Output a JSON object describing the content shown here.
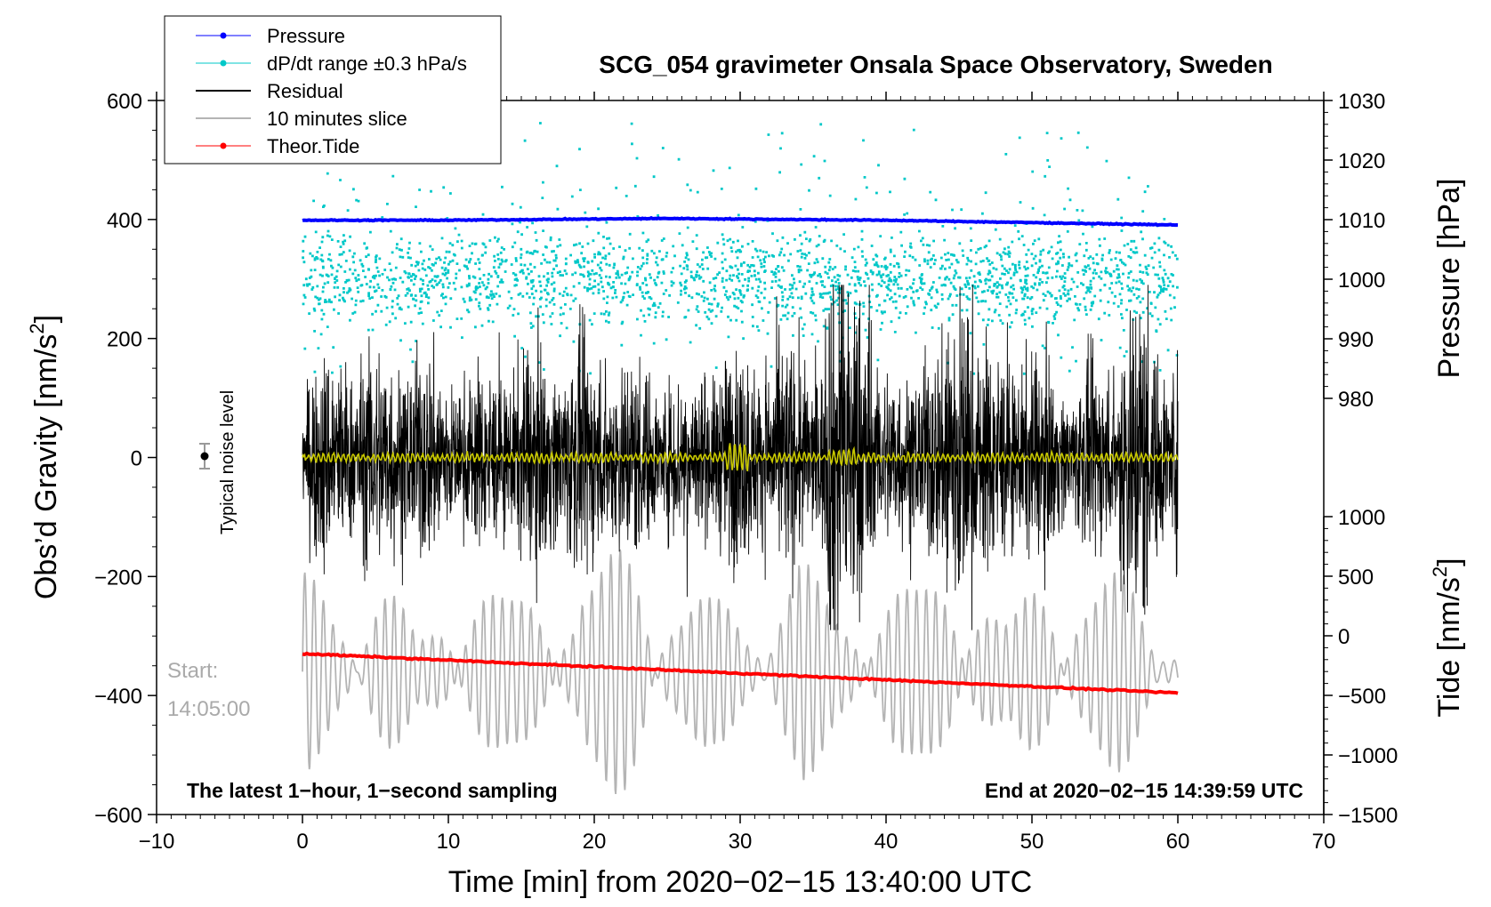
{
  "chart_data": {
    "type": "line",
    "title": "SCG_054 gravimeter Onsala Space Observatory, Sweden",
    "xlabel": "Time [min] from 2020−02−15 13:40:00 UTC",
    "ylabel_left_text": "Obs’d Gravity [nm/s",
    "ylabel_left_sup": "2",
    "ylabel_left_close": "]",
    "ylabel_right_top": "Pressure [hPa]",
    "ylabel_right_bottom_text": "Tide [nm/s",
    "ylabel_right_bottom_sup": "2",
    "ylabel_right_bottom_close": "]",
    "xlim": [
      -10,
      70
    ],
    "ylim_left": [
      -600,
      600
    ],
    "pressure_axis_range": [
      980,
      1030
    ],
    "tide_axis_range": [
      -1500,
      1000
    ],
    "x_ticks": [
      "−10",
      "0",
      "10",
      "20",
      "30",
      "40",
      "50",
      "60",
      "70"
    ],
    "y_left_ticks": [
      "−600",
      "−400",
      "−200",
      "0",
      "200",
      "400",
      "600"
    ],
    "y_left_values": [
      -600,
      -400,
      -200,
      0,
      200,
      400,
      600
    ],
    "pressure_ticks": [
      "980",
      "990",
      "1000",
      "1010",
      "1020",
      "1030"
    ],
    "pressure_values": [
      980,
      990,
      1000,
      1010,
      1020,
      1030
    ],
    "tide_ticks": [
      "−1500",
      "−1000",
      "−500",
      "0",
      "500",
      "1000"
    ],
    "tide_values": [
      -1500,
      -1000,
      -500,
      0,
      500,
      1000
    ],
    "legend": [
      {
        "label": "Pressure",
        "color": "#0000ff",
        "marker": true
      },
      {
        "label": "dP/dt range ±0.3 hPa/s",
        "color": "#00c8c8",
        "marker": true
      },
      {
        "label": "Residual",
        "color": "#000000",
        "marker": false
      },
      {
        "label": "10 minutes slice",
        "color": "#b4b4b4",
        "marker": false
      },
      {
        "label": "Theor.Tide",
        "color": "#ff0000",
        "marker": true
      }
    ],
    "legend_position": "top-left",
    "noise_label": "Typical noise level",
    "start_label_1": "Start:",
    "start_label_2": "14:05:00",
    "bottom_left_note": "The latest 1−hour, 1−second sampling",
    "bottom_right_note": "End at 2020−02−15 14:39:59 UTC",
    "series": [
      {
        "name": "Pressure",
        "unit": "hPa",
        "x": [
          0,
          10,
          20,
          25,
          30,
          40,
          50,
          60
        ],
        "values": [
          1009.9,
          1009.9,
          1010.1,
          1010.2,
          1010.1,
          1009.9,
          1009.5,
          1009.1
        ]
      },
      {
        "name": "dP/dt range ±0.3 hPa/s",
        "note": "scatter cloud centered near ~300 nm/s on gravity axis, spread roughly 160–560"
      },
      {
        "name": "Residual",
        "unit": "nm/s2",
        "envelope_approx": [
          -300,
          300
        ]
      },
      {
        "name": "10 minutes slice",
        "unit": "nm/s2",
        "range_approx": [
          -550,
          -180
        ]
      },
      {
        "name": "Theor.Tide",
        "unit": "nm/s2 (tide axis)",
        "x": [
          0,
          60
        ],
        "values": [
          -150,
          -480
        ]
      }
    ],
    "colors": {
      "pressure": "#0000ff",
      "dpdt": "#00c8c8",
      "residual": "#000000",
      "slice": "#b4b4b4",
      "tide": "#ff0000",
      "smooth": "#c8c800",
      "axis": "#000000"
    }
  }
}
